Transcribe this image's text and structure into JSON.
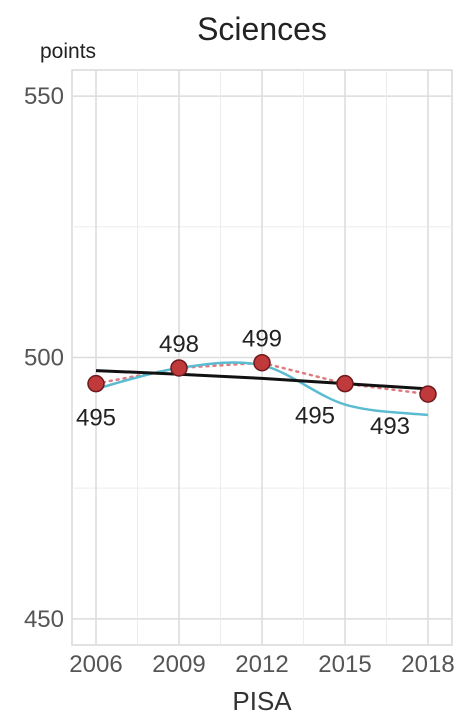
{
  "chart_data": {
    "type": "line",
    "title": "Sciences",
    "ylabel": "points",
    "xlabel": "PISA",
    "ylim": [
      445,
      555
    ],
    "yticks": [
      450,
      500,
      550
    ],
    "x": [
      "2006",
      "2009",
      "2012",
      "2015",
      "2018"
    ],
    "series": [
      {
        "kind": "points",
        "values": [
          495,
          498,
          499,
          495,
          493
        ],
        "color": "#c0393b",
        "labels": [
          "495",
          "498",
          "499",
          "495",
          "493"
        ]
      },
      {
        "kind": "dotted-connector",
        "values": [
          495,
          498,
          499,
          495,
          493
        ],
        "color": "#e07b7f"
      },
      {
        "kind": "smooth-trend",
        "values": [
          494,
          498,
          498.5,
          491,
          489
        ],
        "color": "#5bbcd1"
      },
      {
        "kind": "linear-trend",
        "values": [
          497.5,
          496.8,
          496,
          495,
          494
        ],
        "color": "#111111"
      }
    ],
    "grid": true
  }
}
